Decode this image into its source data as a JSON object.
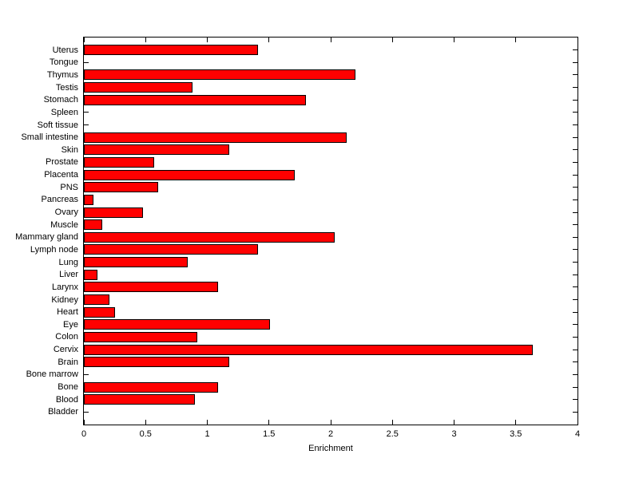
{
  "chart_data": {
    "type": "bar",
    "orientation": "horizontal",
    "title": "",
    "xlabel": "Enrichment",
    "ylabel": "",
    "xlim": [
      0,
      4
    ],
    "grid": false,
    "legend": "none",
    "x_tick_labels": [
      "0",
      "0.5",
      "1",
      "1.5",
      "2",
      "2.5",
      "3",
      "3.5",
      "4"
    ],
    "x_tick_values": [
      0,
      0.5,
      1,
      1.5,
      2,
      2.5,
      3,
      3.5,
      4
    ],
    "categories": [
      "Uterus",
      "Tongue",
      "Thymus",
      "Testis",
      "Stomach",
      "Spleen",
      "Soft tissue",
      "Small intestine",
      "Skin",
      "Prostate",
      "Placenta",
      "PNS",
      "Pancreas",
      "Ovary",
      "Muscle",
      "Mammary gland",
      "Lymph node",
      "Lung",
      "Liver",
      "Larynx",
      "Kidney",
      "Heart",
      "Eye",
      "Colon",
      "Cervix",
      "Brain",
      "Bone marrow",
      "Bone",
      "Blood",
      "Bladder"
    ],
    "values": [
      1.41,
      0,
      2.2,
      0.88,
      1.8,
      0,
      0,
      2.13,
      1.18,
      0.57,
      1.71,
      0.6,
      0.08,
      0.48,
      0.15,
      2.03,
      1.41,
      0.84,
      0.11,
      1.09,
      0.21,
      0.25,
      1.51,
      0.92,
      3.64,
      1.18,
      0,
      1.09,
      0.9,
      0
    ],
    "bar_color": "#FF0000",
    "bar_edge_color": "#000000",
    "axis_color": "#000000",
    "background_color": "#FFFFFF"
  }
}
